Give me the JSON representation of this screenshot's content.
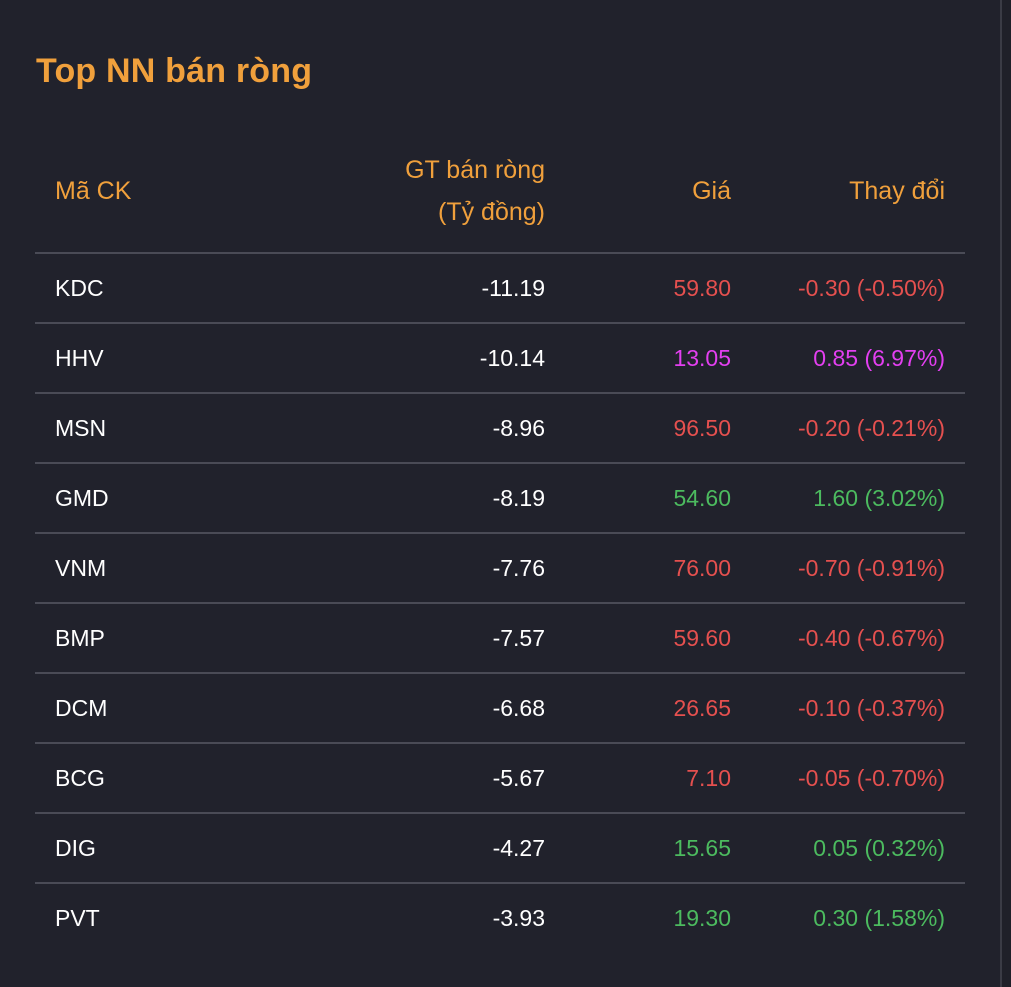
{
  "title": "Top NN bán ròng",
  "columns": {
    "symbol": "Mã CK",
    "net_value_line1": "GT bán ròng",
    "net_value_line2": "(Tỷ đồng)",
    "price": "Giá",
    "change": "Thay đổi"
  },
  "colors": {
    "accent": "#f0a03c",
    "down": "#e5504f",
    "up": "#4cbb5f",
    "ceiling": "#e33ff0",
    "background": "#21222c"
  },
  "rows": [
    {
      "symbol": "KDC",
      "net_value": "-11.19",
      "price": "59.80",
      "change": "-0.30 (-0.50%)",
      "trend": "down"
    },
    {
      "symbol": "HHV",
      "net_value": "-10.14",
      "price": "13.05",
      "change": "0.85 (6.97%)",
      "trend": "ceil"
    },
    {
      "symbol": "MSN",
      "net_value": "-8.96",
      "price": "96.50",
      "change": "-0.20 (-0.21%)",
      "trend": "down"
    },
    {
      "symbol": "GMD",
      "net_value": "-8.19",
      "price": "54.60",
      "change": "1.60 (3.02%)",
      "trend": "up"
    },
    {
      "symbol": "VNM",
      "net_value": "-7.76",
      "price": "76.00",
      "change": "-0.70 (-0.91%)",
      "trend": "down"
    },
    {
      "symbol": "BMP",
      "net_value": "-7.57",
      "price": "59.60",
      "change": "-0.40 (-0.67%)",
      "trend": "down"
    },
    {
      "symbol": "DCM",
      "net_value": "-6.68",
      "price": "26.65",
      "change": "-0.10 (-0.37%)",
      "trend": "down"
    },
    {
      "symbol": "BCG",
      "net_value": "-5.67",
      "price": "7.10",
      "change": "-0.05 (-0.70%)",
      "trend": "down"
    },
    {
      "symbol": "DIG",
      "net_value": "-4.27",
      "price": "15.65",
      "change": "0.05 (0.32%)",
      "trend": "up"
    },
    {
      "symbol": "PVT",
      "net_value": "-3.93",
      "price": "19.30",
      "change": "0.30 (1.58%)",
      "trend": "up"
    }
  ]
}
